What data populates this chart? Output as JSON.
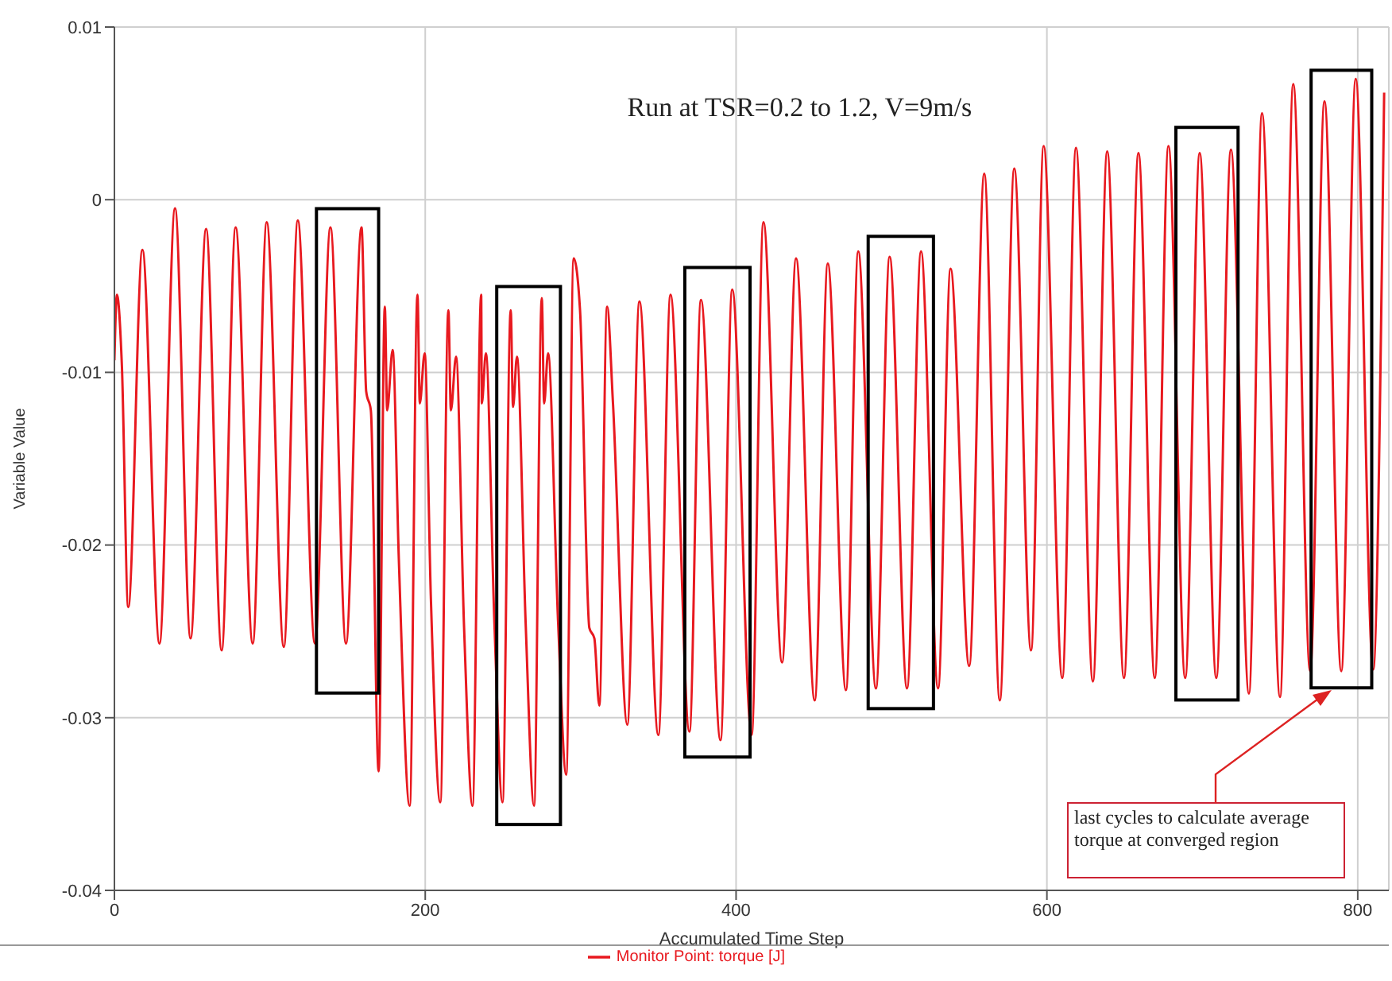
{
  "chart_data": {
    "type": "line",
    "title": "Run at TSR=0.2 to 1.2, V=9m/s",
    "xlabel": "Accumulated Time Step",
    "ylabel": "Variable Value",
    "annotations": [
      "last cycles to calculate average torque at converged region"
    ],
    "x": [
      0,
      1.6,
      4.8,
      8.9,
      18,
      29,
      39,
      49,
      59,
      69,
      78,
      89,
      98,
      109,
      118,
      129,
      139,
      149,
      159,
      162,
      165,
      170,
      174,
      175.5,
      179,
      183,
      190,
      195,
      196.5,
      199.6,
      203.6,
      209.7,
      214.9,
      216.5,
      219.8,
      225,
      230.4,
      236,
      236.4,
      239,
      244.5,
      249.7,
      255,
      256.5,
      259,
      264.6,
      270,
      275,
      276.5,
      279,
      285.5,
      290.7,
      295.5,
      299.6,
      305.6,
      308.8,
      312,
      317,
      320.8,
      330,
      337.8,
      350,
      357.8,
      370,
      377.4,
      390,
      397.5,
      410,
      417.6,
      429.6,
      438.6,
      450.6,
      459,
      470.7,
      478.6,
      490,
      498.8,
      510,
      519,
      530,
      538,
      550,
      559.7,
      569.7,
      579,
      589.8,
      597.9,
      609.9,
      618.7,
      629.6,
      638.8,
      649.6,
      658.9,
      669.4,
      678.2,
      689,
      698.3,
      709,
      718.4,
      730,
      738.4,
      750,
      758.5,
      769.4,
      778.6,
      789.4,
      798.7,
      809.9,
      817
    ],
    "series": [
      {
        "name": "Monitor Point: torque [J]",
        "color": "#e8191f",
        "values": [
          -0.0093,
          -0.0055,
          -0.0096,
          -0.0236,
          -0.0029,
          -0.0257,
          -0.0005,
          -0.0254,
          -0.0017,
          -0.0261,
          -0.0016,
          -0.0257,
          -0.0013,
          -0.0259,
          -0.0012,
          -0.0257,
          -0.0016,
          -0.0257,
          -0.0016,
          -0.0111,
          -0.0122,
          -0.0331,
          -0.0062,
          -0.0122,
          -0.0087,
          -0.0208,
          -0.0351,
          -0.0055,
          -0.0118,
          -0.0089,
          -0.023,
          -0.0349,
          -0.0064,
          -0.0122,
          -0.0091,
          -0.0248,
          -0.0351,
          -0.0055,
          -0.0118,
          -0.0089,
          -0.0245,
          -0.0349,
          -0.0064,
          -0.012,
          -0.0091,
          -0.0245,
          -0.0351,
          -0.0057,
          -0.0118,
          -0.0089,
          -0.0245,
          -0.0333,
          -0.0034,
          -0.0064,
          -0.0248,
          -0.0254,
          -0.0293,
          -0.0062,
          -0.0118,
          -0.0304,
          -0.0059,
          -0.031,
          -0.0055,
          -0.0308,
          -0.0058,
          -0.0313,
          -0.0052,
          -0.031,
          -0.0013,
          -0.0268,
          -0.0034,
          -0.029,
          -0.0037,
          -0.0284,
          -0.003,
          -0.0283,
          -0.0033,
          -0.0283,
          -0.003,
          -0.0283,
          -0.004,
          -0.027,
          0.0015,
          -0.029,
          0.0018,
          -0.0261,
          0.0031,
          -0.0277,
          0.003,
          -0.0279,
          0.0028,
          -0.0277,
          0.0027,
          -0.0277,
          0.0031,
          -0.0277,
          0.0027,
          -0.0277,
          0.0029,
          -0.0286,
          0.005,
          -0.0288,
          0.0067,
          -0.0273,
          0.0057,
          -0.0273,
          0.007,
          -0.0272,
          0.0062
        ]
      }
    ],
    "xlim": [
      0,
      820
    ],
    "xticks": [
      0,
      200,
      400,
      600,
      800
    ],
    "ylim": [
      -0.04,
      0.01
    ],
    "yticks": [
      0.01,
      0,
      -0.01,
      -0.02,
      -0.03,
      -0.04
    ],
    "grid": true,
    "legend": "bottom",
    "marker": "none",
    "line_style": "solid"
  }
}
